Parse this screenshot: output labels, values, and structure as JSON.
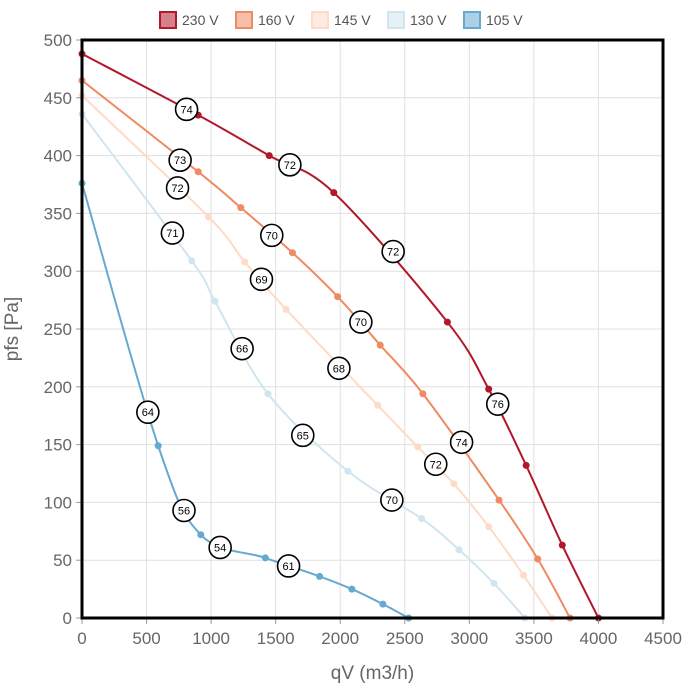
{
  "chart_data": {
    "type": "line",
    "xlabel": "qV (m3/h)",
    "ylabel": "pfs [Pa]",
    "xlim": [
      0,
      4500
    ],
    "ylim": [
      0,
      500
    ],
    "x_ticks": [
      0,
      500,
      1000,
      1500,
      2000,
      2500,
      3000,
      3500,
      4000,
      4500
    ],
    "y_ticks": [
      0,
      50,
      100,
      150,
      200,
      250,
      300,
      350,
      400,
      450,
      500
    ],
    "grid": true,
    "legend_position": "top",
    "series": [
      {
        "name": "230 V",
        "color": "#b2182b",
        "points": [
          [
            0,
            488
          ],
          [
            900,
            435
          ],
          [
            1450,
            400
          ],
          [
            1950,
            368
          ],
          [
            2830,
            256
          ],
          [
            3150,
            198
          ],
          [
            3440,
            132
          ],
          [
            3720,
            63
          ],
          [
            4000,
            0
          ]
        ]
      },
      {
        "name": "160 V",
        "color": "#ef8a62",
        "points": [
          [
            0,
            465
          ],
          [
            900,
            386
          ],
          [
            1230,
            355
          ],
          [
            1630,
            316
          ],
          [
            1980,
            278
          ],
          [
            2310,
            236
          ],
          [
            2640,
            194
          ],
          [
            3230,
            102
          ],
          [
            3530,
            51
          ],
          [
            3780,
            0
          ]
        ]
      },
      {
        "name": "145 V",
        "color": "#fddbc7",
        "points": [
          [
            0,
            452
          ],
          [
            980,
            347
          ],
          [
            1260,
            308
          ],
          [
            1580,
            267
          ],
          [
            2290,
            184
          ],
          [
            2600,
            148
          ],
          [
            2880,
            116
          ],
          [
            3150,
            79
          ],
          [
            3420,
            37
          ],
          [
            3640,
            0
          ]
        ]
      },
      {
        "name": "130 V",
        "color": "#d1e5f0",
        "points": [
          [
            0,
            436
          ],
          [
            850,
            309
          ],
          [
            1030,
            274
          ],
          [
            1440,
            194
          ],
          [
            2060,
            127
          ],
          [
            2630,
            86
          ],
          [
            2920,
            59
          ],
          [
            3190,
            30
          ],
          [
            3430,
            0
          ]
        ]
      },
      {
        "name": "105 V",
        "color": "#67a9cf",
        "points": [
          [
            0,
            376
          ],
          [
            590,
            149
          ],
          [
            920,
            72
          ],
          [
            1420,
            52
          ],
          [
            1840,
            36
          ],
          [
            2090,
            25
          ],
          [
            2330,
            12
          ],
          [
            2530,
            0
          ]
        ]
      }
    ],
    "annotations": [
      {
        "text": "74",
        "x": 810,
        "y": 440
      },
      {
        "text": "72",
        "x": 1610,
        "y": 392
      },
      {
        "text": "72",
        "x": 2410,
        "y": 317
      },
      {
        "text": "76",
        "x": 3220,
        "y": 185
      },
      {
        "text": "73",
        "x": 760,
        "y": 396
      },
      {
        "text": "70",
        "x": 1470,
        "y": 331
      },
      {
        "text": "70",
        "x": 2160,
        "y": 256
      },
      {
        "text": "74",
        "x": 2940,
        "y": 152
      },
      {
        "text": "72",
        "x": 740,
        "y": 372
      },
      {
        "text": "69",
        "x": 1390,
        "y": 293
      },
      {
        "text": "68",
        "x": 1990,
        "y": 216
      },
      {
        "text": "72",
        "x": 2740,
        "y": 133
      },
      {
        "text": "71",
        "x": 700,
        "y": 333
      },
      {
        "text": "66",
        "x": 1240,
        "y": 233
      },
      {
        "text": "65",
        "x": 1710,
        "y": 158
      },
      {
        "text": "70",
        "x": 2400,
        "y": 102
      },
      {
        "text": "64",
        "x": 510,
        "y": 178
      },
      {
        "text": "56",
        "x": 790,
        "y": 93
      },
      {
        "text": "54",
        "x": 1070,
        "y": 61
      },
      {
        "text": "61",
        "x": 1600,
        "y": 45
      }
    ]
  }
}
